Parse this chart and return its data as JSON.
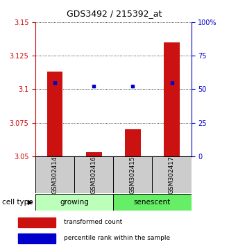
{
  "title": "GDS3492 / 215392_at",
  "samples": [
    "GSM302414",
    "GSM302416",
    "GSM302415",
    "GSM302417"
  ],
  "red_values": [
    3.113,
    3.053,
    3.07,
    3.135
  ],
  "blue_values": [
    55,
    52,
    52,
    55
  ],
  "ylim_left": [
    3.05,
    3.15
  ],
  "ylim_right": [
    0,
    100
  ],
  "yticks_left": [
    3.05,
    3.075,
    3.1,
    3.125,
    3.15
  ],
  "ytick_labels_left": [
    "3.05",
    "3.075",
    "3.1",
    "3.125",
    "3.15"
  ],
  "yticks_right": [
    0,
    25,
    50,
    75,
    100
  ],
  "ytick_labels_right": [
    "0",
    "25",
    "50",
    "75",
    "100%"
  ],
  "bar_bottom": 3.05,
  "left_axis_color": "#cc0000",
  "right_axis_color": "#0000cc",
  "bar_color": "#cc1111",
  "dot_color": "#0000cc",
  "legend_square_red": "#cc1111",
  "legend_square_blue": "#0000cc",
  "legend_text_red": "transformed count",
  "legend_text_blue": "percentile rank within the sample",
  "cell_type_label": "cell type",
  "arrow_char": "▶",
  "group_labels": [
    "growing",
    "senescent"
  ],
  "group_colors": [
    "#bbffbb",
    "#66ee66"
  ],
  "title_fontsize": 9,
  "tick_fontsize": 7,
  "sample_fontsize": 6.5,
  "cell_type_fontsize": 7.5,
  "legend_fontsize": 6.5
}
